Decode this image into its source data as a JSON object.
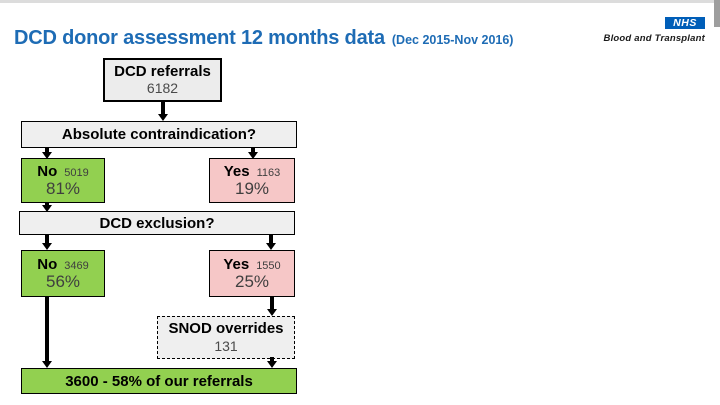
{
  "header": {
    "title": "DCD donor assessment 12 months data",
    "subtitle": "(Dec 2015-Nov 2016)"
  },
  "logo": {
    "nhs_text": "NHS",
    "org_text": "Blood and Transplant"
  },
  "flow": {
    "referrals": {
      "label": "DCD referrals",
      "value": "6182"
    },
    "q1_label": "Absolute contraindication?",
    "q1_no": {
      "label": "No",
      "count": "5019",
      "pct": "81%"
    },
    "q1_yes": {
      "label": "Yes",
      "count": "1163",
      "pct": "19%"
    },
    "q2_label": "DCD exclusion?",
    "q2_no": {
      "label": "No",
      "count": "3469",
      "pct": "56%"
    },
    "q2_yes": {
      "label": "Yes",
      "count": "1550",
      "pct": "25%"
    },
    "snod": {
      "label": "SNOD overrides",
      "value": "131"
    },
    "result": "3600 - 58% of our referrals"
  },
  "colors": {
    "title_blue": "#1e6cb5",
    "nhs_blue": "#005EB8",
    "no_green": "#92d050",
    "yes_pink": "#f6c7c7",
    "neutral_gray": "#efefef"
  }
}
